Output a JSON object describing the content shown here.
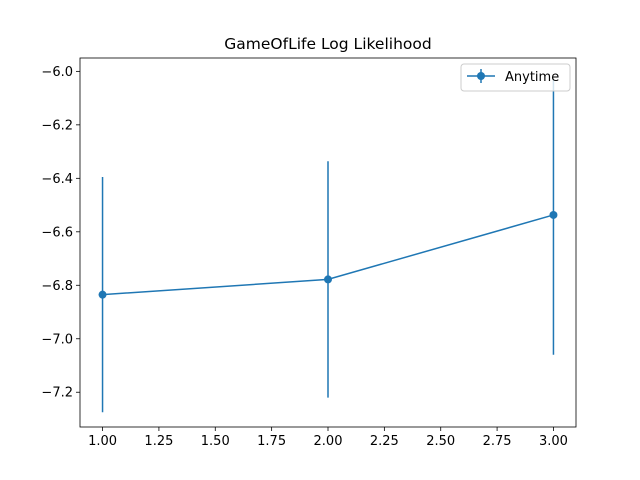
{
  "chart_data": {
    "type": "line",
    "title": "GameOfLife Log Likelihood",
    "xlabel": "",
    "ylabel": "",
    "xlim": [
      0.9,
      3.1
    ],
    "ylim": [
      -7.33,
      -5.95
    ],
    "xticks": [
      1.0,
      1.25,
      1.5,
      1.75,
      2.0,
      2.25,
      2.5,
      2.75,
      3.0
    ],
    "xtick_labels": [
      "1.00",
      "1.25",
      "1.50",
      "1.75",
      "2.00",
      "2.25",
      "2.50",
      "2.75",
      "3.00"
    ],
    "yticks": [
      -7.2,
      -7.0,
      -6.8,
      -6.6,
      -6.4,
      -6.2,
      -6.0
    ],
    "ytick_labels": [
      "−7.2",
      "−7.0",
      "−6.8",
      "−6.6",
      "−6.4",
      "−6.2",
      "−6.0"
    ],
    "grid": false,
    "legend": {
      "placement": "top-right"
    },
    "series": [
      {
        "name": "Anytime",
        "color": "#1f77b4",
        "marker": "circle",
        "x": [
          1.0,
          2.0,
          3.0
        ],
        "y": [
          -6.835,
          -6.778,
          -6.537
        ],
        "yerr_low": [
          -7.275,
          -7.22,
          -7.06
        ],
        "yerr_high": [
          -6.395,
          -6.336,
          -6.03
        ]
      }
    ]
  }
}
